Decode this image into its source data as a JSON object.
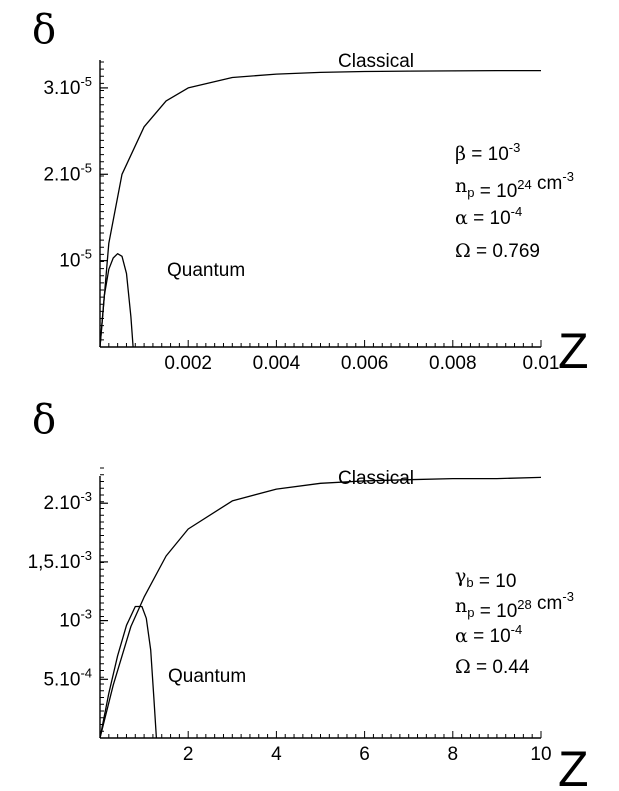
{
  "chart_data": [
    {
      "type": "line",
      "ylabel": "δ",
      "xlabel": "Z",
      "xlim": [
        0,
        0.01
      ],
      "ylim": [
        0,
        3.3e-05
      ],
      "x_ticks": [
        "0.002",
        "0.004",
        "0.006",
        "0.008",
        "0.01"
      ],
      "y_ticks": [
        {
          "base": "3.10",
          "exp": "-5"
        },
        {
          "base": "2.10",
          "exp": "-5"
        },
        {
          "base": "10",
          "exp": "-5"
        }
      ],
      "series": [
        {
          "name": "Classical",
          "x": [
            0,
            0.0002,
            0.0005,
            0.001,
            0.0015,
            0.002,
            0.003,
            0.004,
            0.005,
            0.006,
            0.007,
            0.008,
            0.009,
            0.01
          ],
          "y": [
            0,
            1.2e-05,
            2e-05,
            2.55e-05,
            2.85e-05,
            3e-05,
            3.12e-05,
            3.16e-05,
            3.18e-05,
            3.19e-05,
            3.195e-05,
            3.197e-05,
            3.2e-05,
            3.2e-05
          ]
        },
        {
          "name": "Quantum",
          "x": [
            0,
            0.0001,
            0.0002,
            0.0003,
            0.0004,
            0.0005,
            0.0006,
            0.0007,
            0.00075
          ],
          "y": [
            0,
            6e-06,
            9e-06,
            1.03e-05,
            1.08e-05,
            1.05e-05,
            8.5e-06,
            3.5e-06,
            0
          ]
        }
      ],
      "params": [
        {
          "sym": "β",
          "sub": "",
          "text": " = 10",
          "sup": "-3",
          "tail": ""
        },
        {
          "sym": "n",
          "sub": "p",
          "text": " = 10",
          "sup": "24",
          "tail": " cm",
          "sup2": "-3"
        },
        {
          "sym": "α",
          "sub": "",
          "text": " = 10",
          "sup": "-4",
          "tail": ""
        },
        {
          "sym": "Ω",
          "sub": "",
          "text": " = 0.769",
          "sup": "",
          "tail": ""
        }
      ]
    },
    {
      "type": "line",
      "ylabel": "δ",
      "xlabel": "Z",
      "xlim": [
        0,
        10
      ],
      "ylim": [
        0,
        0.0023
      ],
      "x_ticks": [
        "2",
        "4",
        "6",
        "8",
        "10"
      ],
      "y_ticks": [
        {
          "base": "2.10",
          "exp": "-3"
        },
        {
          "base": "1,5.10",
          "exp": "-3"
        },
        {
          "base": "10",
          "exp": "-3"
        },
        {
          "base": "5.10",
          "exp": "-4"
        }
      ],
      "series": [
        {
          "name": "Classical",
          "x": [
            0,
            0.3,
            0.7,
            1,
            1.5,
            2,
            3,
            4,
            5,
            6,
            7,
            8,
            9,
            10
          ],
          "y": [
            0,
            0.00045,
            0.00095,
            0.0012,
            0.00155,
            0.00178,
            0.00202,
            0.00212,
            0.00217,
            0.00219,
            0.0022,
            0.00221,
            0.00221,
            0.00222
          ]
        },
        {
          "name": "Quantum",
          "x": [
            0,
            0.2,
            0.4,
            0.6,
            0.8,
            0.95,
            1.05,
            1.15,
            1.22,
            1.28
          ],
          "y": [
            0,
            0.00038,
            0.0007,
            0.00096,
            0.00112,
            0.00112,
            0.00102,
            0.00075,
            0.00035,
            0
          ]
        }
      ],
      "params": [
        {
          "sym": "γ",
          "sub": "b",
          "text": " = 10",
          "sup": "",
          "tail": ""
        },
        {
          "sym": "n",
          "sub": "p",
          "text": " = 10",
          "sup": "28",
          "tail": " cm",
          "sup2": "-3"
        },
        {
          "sym": "α",
          "sub": "",
          "text": " = 10",
          "sup": "-4",
          "tail": ""
        },
        {
          "sym": "Ω",
          "sub": "",
          "text": " = 0.44",
          "sup": "",
          "tail": ""
        }
      ]
    }
  ]
}
